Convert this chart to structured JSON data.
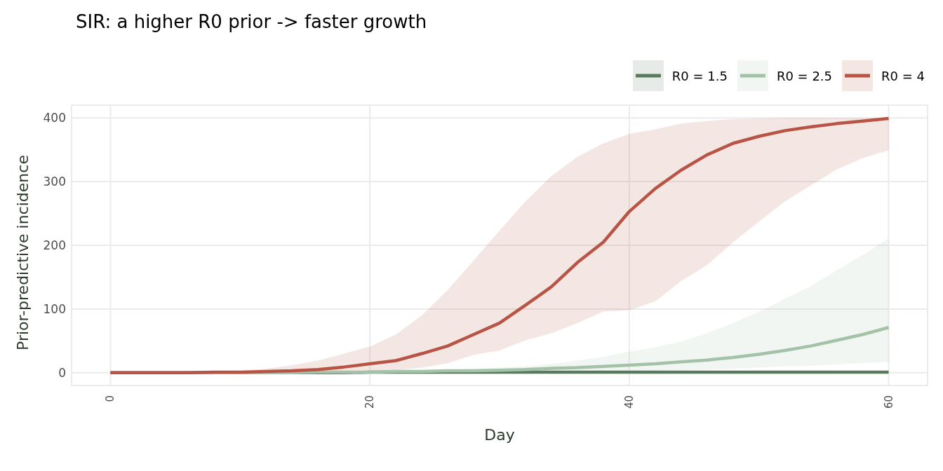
{
  "chart_data": {
    "type": "line",
    "title": "SIR: a higher R0 prior -> faster growth",
    "xlabel": "Day",
    "ylabel": "Prior-predictive incidence",
    "x": [
      0,
      2,
      4,
      6,
      8,
      10,
      12,
      14,
      16,
      18,
      20,
      22,
      24,
      26,
      28,
      30,
      32,
      34,
      36,
      38,
      40,
      42,
      44,
      46,
      48,
      50,
      52,
      54,
      56,
      58,
      60
    ],
    "series": [
      {
        "name": "R0 = 1.5",
        "color": "#5a7a5e",
        "values": [
          0,
          0,
          0,
          0,
          0,
          0,
          0,
          0,
          0,
          0,
          1,
          1,
          1,
          1,
          1,
          1,
          1,
          1,
          1,
          1,
          1,
          1,
          1,
          1,
          1,
          1,
          1,
          1,
          1,
          1,
          1
        ],
        "lower": [
          0,
          0,
          0,
          0,
          0,
          0,
          0,
          0,
          0,
          0,
          0,
          0,
          0,
          0,
          0,
          0,
          0,
          0,
          0,
          0,
          0,
          0,
          0,
          0,
          0,
          0,
          0,
          0,
          0,
          0,
          0
        ],
        "upper": [
          0,
          0,
          0,
          1,
          1,
          1,
          1,
          1,
          1,
          2,
          2,
          2,
          2,
          2,
          2,
          2,
          2,
          3,
          3,
          3,
          3,
          3,
          3,
          3,
          3,
          3,
          3,
          3,
          3,
          3,
          3
        ]
      },
      {
        "name": "R0 = 2.5",
        "color": "#a3c2a8",
        "values": [
          0,
          0,
          0,
          0,
          0,
          0,
          0,
          0,
          1,
          1,
          1,
          2,
          2,
          3,
          3,
          4,
          5,
          7,
          8,
          10,
          12,
          14,
          17,
          20,
          24,
          29,
          35,
          42,
          51,
          60,
          71
        ],
        "lower": [
          0,
          0,
          0,
          0,
          0,
          0,
          0,
          0,
          0,
          0,
          0,
          0,
          0,
          0,
          0,
          0,
          1,
          1,
          2,
          2,
          3,
          3,
          4,
          5,
          6,
          8,
          10,
          11,
          13,
          15,
          17
        ],
        "upper": [
          0,
          0,
          0,
          0,
          0,
          0,
          0,
          1,
          1,
          2,
          2,
          3,
          4,
          5,
          6,
          8,
          10,
          14,
          19,
          25,
          33,
          40,
          49,
          62,
          78,
          96,
          116,
          136,
          161,
          185,
          211
        ]
      },
      {
        "name": "R0 = 4",
        "color": "#b85446",
        "values": [
          0,
          0,
          0,
          0,
          1,
          1,
          2,
          3,
          5,
          9,
          14,
          19,
          30,
          42,
          60,
          78,
          106,
          135,
          173,
          205,
          253,
          289,
          318,
          342,
          360,
          371,
          380,
          386,
          391,
          395,
          399
        ],
        "lower": [
          0,
          0,
          0,
          0,
          0,
          0,
          0,
          0,
          1,
          1,
          3,
          4,
          8,
          15,
          28,
          35,
          51,
          62,
          78,
          96,
          98,
          112,
          144,
          169,
          205,
          237,
          269,
          294,
          319,
          337,
          349
        ],
        "upper": [
          0,
          0,
          0,
          1,
          1,
          3,
          6,
          12,
          19,
          30,
          41,
          60,
          90,
          130,
          176,
          223,
          269,
          309,
          339,
          360,
          375,
          382,
          391,
          395,
          398,
          399,
          400,
          400,
          400,
          400,
          400
        ]
      }
    ],
    "xlim": [
      -3,
      63
    ],
    "xticks": [
      0,
      20,
      40,
      60
    ],
    "ylim": [
      -20,
      420
    ],
    "yticks": [
      0,
      100,
      200,
      300,
      400
    ],
    "grid": true,
    "legend": "top right",
    "marker": "none",
    "line_style": "solid"
  }
}
